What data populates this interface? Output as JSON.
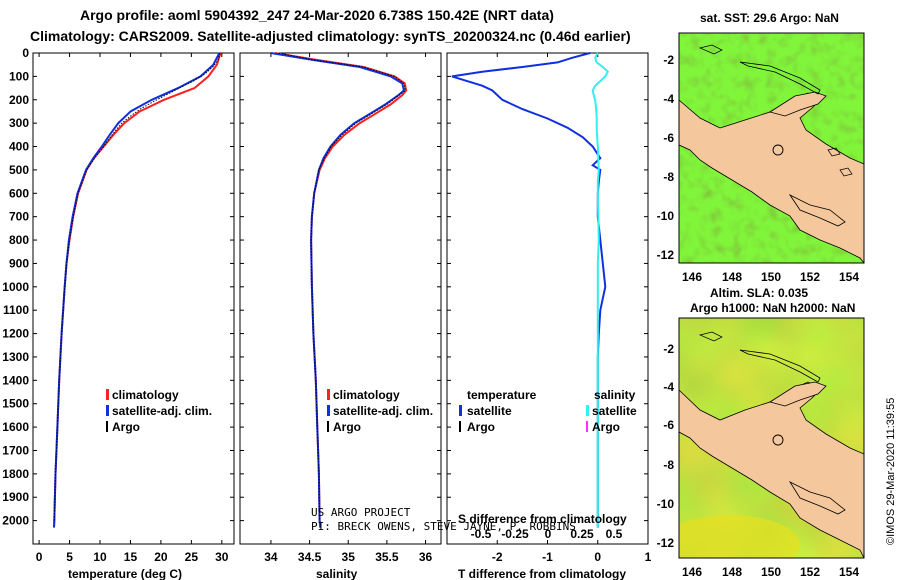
{
  "header": {
    "line1": "Argo profile: aoml 5904392_247 24-Mar-2020 6.738S 150.42E (NRT data)",
    "line2": "Climatology: CARS2009. Satellite-adjusted climatology: synTS_20200324.nc (0.46d earlier)"
  },
  "colors": {
    "climatology": "#ff2020",
    "satellite": "#1030e0",
    "argo": "#000000",
    "satellite_salinity": "#30f0f0",
    "argo_salinity": "#ff30ff",
    "land": "#f4c79c",
    "coast": "#000000"
  },
  "chart_data": [
    {
      "type": "line",
      "name": "temperature",
      "xlabel": "temperature (deg C)",
      "ylabel": "",
      "xlim": [
        -1,
        32
      ],
      "ylim": [
        2100,
        0
      ],
      "xticks": [
        0,
        5,
        10,
        15,
        20,
        25,
        30
      ],
      "yticks": [
        0,
        100,
        200,
        300,
        400,
        500,
        600,
        700,
        800,
        900,
        1000,
        1100,
        1200,
        1300,
        1400,
        1500,
        1600,
        1700,
        1800,
        1900,
        2000
      ],
      "legend": [
        "climatology",
        "satellite-adj. clim.",
        "Argo"
      ],
      "series": [
        {
          "name": "climatology",
          "depth": [
            0,
            50,
            100,
            150,
            200,
            250,
            300,
            350,
            400,
            450,
            500,
            600,
            700,
            800,
            900,
            1000,
            1200,
            1400,
            1600,
            1800,
            2000,
            2030
          ],
          "values": [
            29.8,
            29.2,
            27.8,
            25.5,
            20.5,
            16.5,
            14.0,
            12.2,
            10.6,
            9.0,
            7.8,
            6.4,
            5.6,
            5.0,
            4.5,
            4.2,
            3.7,
            3.3,
            3.0,
            2.7,
            2.5,
            2.45
          ]
        },
        {
          "name": "satellite-adj. clim.",
          "depth": [
            0,
            50,
            100,
            150,
            200,
            250,
            300,
            350,
            400,
            450,
            500,
            600,
            700,
            800,
            900,
            1000,
            1200,
            1400,
            1600,
            1800,
            2000,
            2030
          ],
          "values": [
            29.6,
            28.6,
            26.5,
            22.8,
            18.5,
            15.0,
            13.0,
            11.6,
            10.3,
            8.9,
            7.7,
            6.3,
            5.5,
            4.9,
            4.5,
            4.2,
            3.7,
            3.3,
            3.0,
            2.7,
            2.5,
            2.45
          ]
        },
        {
          "name": "Argo",
          "depth": [
            0,
            30,
            60,
            90,
            120,
            150,
            180,
            210,
            240,
            270,
            300,
            330,
            360,
            400,
            450,
            500,
            600,
            700,
            800,
            900,
            1000,
            1200,
            1400,
            1600,
            1800,
            2000
          ],
          "values": [
            29.7,
            29.4,
            28.5,
            27.2,
            25.3,
            23.0,
            20.8,
            18.6,
            16.6,
            15.0,
            13.6,
            12.6,
            11.7,
            10.6,
            9.1,
            7.8,
            6.4,
            5.6,
            5.0,
            4.5,
            4.2,
            3.7,
            3.3,
            3.0,
            2.7,
            2.5
          ]
        }
      ]
    },
    {
      "type": "line",
      "name": "salinity",
      "xlabel": "salinity",
      "xlim": [
        33.6,
        36.2
      ],
      "ylim": [
        2100,
        0
      ],
      "xticks": [
        34,
        34.5,
        35,
        35.5,
        36
      ],
      "legend": [
        "climatology",
        "satellite-adj. clim.",
        "Argo"
      ],
      "series": [
        {
          "name": "climatology",
          "depth": [
            0,
            30,
            60,
            100,
            130,
            160,
            180,
            220,
            260,
            300,
            350,
            400,
            450,
            500,
            600,
            700,
            800,
            1000,
            1200,
            1400,
            1600,
            1800,
            2000,
            2030
          ],
          "values": [
            34.05,
            34.6,
            35.2,
            35.6,
            35.73,
            35.75,
            35.7,
            35.55,
            35.35,
            35.15,
            34.95,
            34.8,
            34.7,
            34.63,
            34.56,
            34.53,
            34.52,
            34.53,
            34.55,
            34.58,
            34.6,
            34.62,
            34.63,
            34.64
          ]
        },
        {
          "name": "satellite-adj. clim.",
          "depth": [
            0,
            30,
            60,
            100,
            130,
            160,
            180,
            220,
            260,
            300,
            350,
            400,
            450,
            500,
            600,
            700,
            800,
            1000,
            1200,
            1400,
            1600,
            1800,
            2000,
            2030
          ],
          "values": [
            34.0,
            34.55,
            35.15,
            35.55,
            35.7,
            35.72,
            35.65,
            35.48,
            35.28,
            35.08,
            34.9,
            34.77,
            34.68,
            34.62,
            34.56,
            34.53,
            34.52,
            34.53,
            34.55,
            34.58,
            34.6,
            34.62,
            34.63,
            34.64
          ]
        },
        {
          "name": "Argo",
          "depth": [
            0,
            30,
            60,
            100,
            130,
            160,
            190,
            220,
            260,
            300,
            350,
            400,
            450,
            500,
            600,
            700,
            800,
            1000,
            1200,
            1400,
            1600,
            1800,
            2000
          ],
          "values": [
            34.1,
            34.55,
            35.2,
            35.6,
            35.72,
            35.74,
            35.62,
            35.5,
            35.3,
            35.1,
            34.92,
            34.78,
            34.69,
            34.62,
            34.56,
            34.53,
            34.52,
            34.53,
            34.55,
            34.58,
            34.6,
            34.62,
            34.63
          ]
        }
      ]
    },
    {
      "type": "line",
      "name": "difference",
      "xlabel": "T difference from climatology",
      "title_overlay": "S difference from climatology",
      "xlim": [
        -3,
        1
      ],
      "ylim": [
        2100,
        0
      ],
      "xticks": [
        -2,
        -1,
        0,
        1
      ],
      "s_ticks": [
        "-0.5",
        "-0.25",
        "0",
        "0.25",
        "0.5"
      ],
      "legend_left": [
        "temperature",
        "satellite",
        "Argo"
      ],
      "legend_right": [
        "salinity",
        "satellite",
        "Argo"
      ],
      "series": [
        {
          "name": "temperature satellite",
          "depth": [
            0,
            20,
            40,
            60,
            80,
            100,
            120,
            140,
            160,
            180,
            200,
            240,
            280,
            320,
            360,
            400,
            450,
            480,
            500,
            550,
            600,
            700,
            800,
            900,
            1000,
            1050,
            1100,
            1200,
            1300,
            1400,
            1500,
            1600,
            1800,
            2000,
            2030
          ],
          "values": [
            -0.15,
            -0.5,
            -0.8,
            -1.5,
            -2.3,
            -2.9,
            -2.6,
            -2.3,
            -2.1,
            -2.0,
            -1.9,
            -1.5,
            -1.0,
            -0.6,
            -0.3,
            -0.1,
            0.05,
            -0.1,
            0.05,
            0.02,
            0.0,
            0.0,
            0.05,
            0.1,
            0.15,
            0.1,
            0.05,
            0.02,
            0.0,
            0.0,
            0.0,
            0.0,
            0.0,
            0.0,
            0.0
          ]
        },
        {
          "name": "salinity satellite",
          "depth": [
            0,
            20,
            40,
            60,
            80,
            100,
            120,
            140,
            160,
            180,
            200,
            240,
            280,
            320,
            360,
            400,
            450,
            500,
            550,
            600,
            700,
            800,
            900,
            1000,
            1200,
            1400,
            1600,
            1800,
            2000,
            2030
          ],
          "values": [
            0.0,
            -0.05,
            -0.02,
            0.1,
            0.2,
            0.15,
            0.05,
            -0.05,
            -0.1,
            -0.08,
            -0.05,
            -0.03,
            -0.02,
            -0.02,
            -0.01,
            0.0,
            0.01,
            0.02,
            0.0,
            0.0,
            0.01,
            0.02,
            0.0,
            0.0,
            0.0,
            0.0,
            0.0,
            0.0,
            0.0,
            0.0
          ]
        }
      ]
    }
  ],
  "credit": {
    "line1": "US ARGO PROJECT",
    "line2": "PI: BRECK OWENS, STEVE JAYNE, P. ROBBINS"
  },
  "maps": [
    {
      "name": "sst",
      "title": "sat. SST: 29.6 Argo: NaN",
      "xticks": [
        "146",
        "148",
        "150",
        "152",
        "154"
      ],
      "yticks": [
        "-2",
        "-4",
        "-6",
        "-8",
        "-10",
        "-12"
      ],
      "float_lon": 150.42,
      "float_lat": -6.738
    },
    {
      "name": "sla",
      "title1": "Altim. SLA: 0.035",
      "title2": "Argo h1000: NaN h2000: NaN",
      "xticks": [
        "146",
        "148",
        "150",
        "152",
        "154"
      ],
      "yticks": [
        "-2",
        "-4",
        "-6",
        "-8",
        "-10",
        "-12"
      ],
      "float_lon": 150.42,
      "float_lat": -6.738
    }
  ],
  "watermark": "©IMOS 29-Mar-2020 11:39:55"
}
